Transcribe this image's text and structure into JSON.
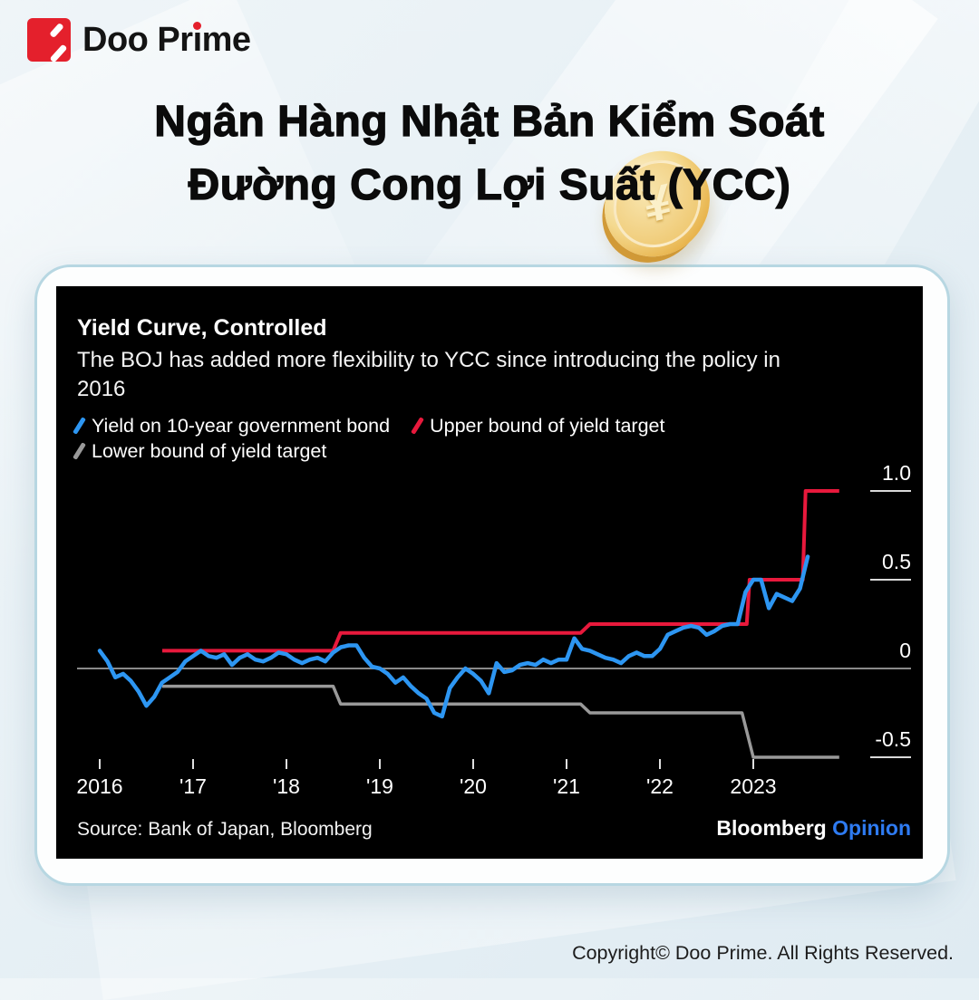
{
  "logo": {
    "brand_prefix": "Doo Pr",
    "brand_i": "ı",
    "brand_suffix": "me"
  },
  "heading": {
    "line1": "Ngân Hàng Nhật Bản Kiểm Soát",
    "line2": "Đường Cong Lợi Suất (YCC)"
  },
  "coin": {
    "symbol": "¥"
  },
  "chart_data": {
    "type": "line",
    "title": "Yield Curve, Controlled",
    "subtitle_lines": [
      "The BOJ has added more flexibility to YCC since introducing the policy in",
      "2016"
    ],
    "background": "#000000",
    "legend_position": "top-left",
    "grid": "zero-line-only",
    "xlim": [
      2015.77,
      2024.25
    ],
    "ylim": [
      -0.62,
      1.08
    ],
    "x_ticks": [
      {
        "t": 2016,
        "label": "2016"
      },
      {
        "t": 2017,
        "label": "'17"
      },
      {
        "t": 2018,
        "label": "'18"
      },
      {
        "t": 2019,
        "label": "'19"
      },
      {
        "t": 2020,
        "label": "'20"
      },
      {
        "t": 2021,
        "label": "'21"
      },
      {
        "t": 2022,
        "label": "'22"
      },
      {
        "t": 2023,
        "label": "2023"
      }
    ],
    "y_ticks": [
      {
        "v": 1.0,
        "label": "1.0"
      },
      {
        "v": 0.5,
        "label": "0.5"
      },
      {
        "v": 0,
        "label": "0"
      },
      {
        "v": -0.5,
        "label": "-0.5"
      }
    ],
    "series": [
      {
        "name": "Yield on 10-year government bond",
        "color": "#2D96F2",
        "kind": "monthly",
        "start_year": 2016.0,
        "values": [
          0.1,
          0.04,
          -0.05,
          -0.03,
          -0.07,
          -0.13,
          -0.21,
          -0.16,
          -0.08,
          -0.05,
          -0.02,
          0.04,
          0.07,
          0.1,
          0.07,
          0.06,
          0.08,
          0.02,
          0.06,
          0.08,
          0.05,
          0.04,
          0.06,
          0.09,
          0.08,
          0.05,
          0.03,
          0.05,
          0.06,
          0.04,
          0.09,
          0.12,
          0.13,
          0.13,
          0.06,
          0.01,
          0.0,
          -0.03,
          -0.08,
          -0.05,
          -0.1,
          -0.14,
          -0.17,
          -0.25,
          -0.27,
          -0.11,
          -0.05,
          0.0,
          -0.03,
          -0.07,
          -0.14,
          0.03,
          -0.02,
          -0.01,
          0.02,
          0.03,
          0.02,
          0.05,
          0.03,
          0.05,
          0.05,
          0.17,
          0.11,
          0.1,
          0.08,
          0.06,
          0.05,
          0.03,
          0.07,
          0.09,
          0.07,
          0.07,
          0.11,
          0.19,
          0.21,
          0.23,
          0.24,
          0.23,
          0.19,
          0.21,
          0.24,
          0.25,
          0.25,
          0.43,
          0.5,
          0.5,
          0.34,
          0.42,
          0.4,
          0.38,
          0.45,
          0.63
        ]
      },
      {
        "name": "Upper bound of yield target",
        "color": "#E8193C",
        "kind": "steps",
        "points": [
          [
            2016.67,
            0.1
          ],
          [
            2018.5,
            0.1
          ],
          [
            2018.58,
            0.2
          ],
          [
            2021.15,
            0.2
          ],
          [
            2021.25,
            0.25
          ],
          [
            2022.93,
            0.25
          ],
          [
            2022.96,
            0.5
          ],
          [
            2023.53,
            0.5
          ],
          [
            2023.56,
            1.0
          ],
          [
            2023.92,
            1.0
          ]
        ]
      },
      {
        "name": "Lower bound of yield target",
        "color": "#999999",
        "kind": "steps",
        "points": [
          [
            2016.67,
            -0.1
          ],
          [
            2018.5,
            -0.1
          ],
          [
            2018.58,
            -0.2
          ],
          [
            2021.15,
            -0.2
          ],
          [
            2021.25,
            -0.25
          ],
          [
            2022.88,
            -0.25
          ],
          [
            2023.0,
            -0.5
          ],
          [
            2023.92,
            -0.5
          ]
        ]
      }
    ],
    "source": "Source: Bank of Japan, Bloomberg",
    "branding": {
      "bloomberg": "Bloomberg",
      "opinion": "Opinion",
      "opinion_color": "#2E7BF2"
    }
  },
  "footer": {
    "copyright": "Copyright© Doo Prime. All Rights Reserved."
  }
}
